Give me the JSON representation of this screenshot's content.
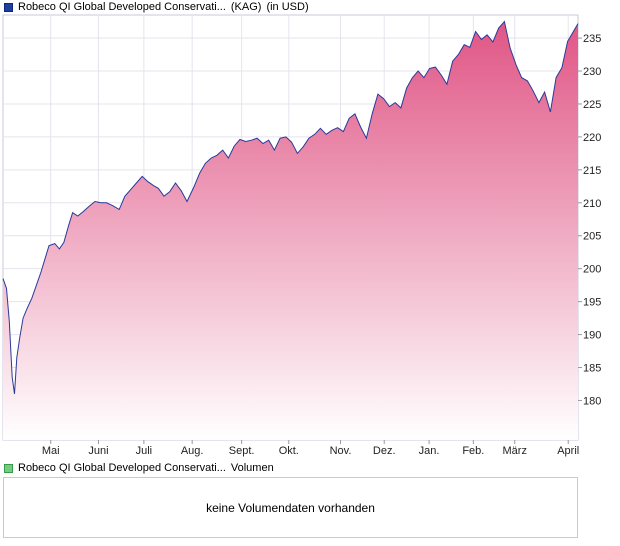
{
  "legend_price": {
    "name": "Robeco QI Global Developed Conservati...",
    "type": "(KAG)",
    "currency": "(in USD)",
    "color": "#1f3f9f"
  },
  "legend_volume": {
    "name": "Robeco QI Global Developed Conservati...",
    "label": "Volumen",
    "color": "#6fcf7f"
  },
  "volume_message": "keine Volumendaten vorhanden",
  "chart_data": {
    "type": "area",
    "title": "",
    "xlabel": "",
    "ylabel": "",
    "ylim": [
      174,
      238.5
    ],
    "grid": true,
    "y_axis_side": "right",
    "fill_gradient": [
      "#e05585",
      "#ffffff"
    ],
    "line_color": "#2a3a9a",
    "x_range": [
      0,
      1
    ],
    "x_ticks": [
      {
        "label": "Mai",
        "x": 0.083
      },
      {
        "label": "Juni",
        "x": 0.166
      },
      {
        "label": "Juli",
        "x": 0.245
      },
      {
        "label": "Aug.",
        "x": 0.329
      },
      {
        "label": "Sept.",
        "x": 0.415
      },
      {
        "label": "Okt.",
        "x": 0.497
      },
      {
        "label": "Nov.",
        "x": 0.587
      },
      {
        "label": "Dez.",
        "x": 0.663
      },
      {
        "label": "Jan.",
        "x": 0.741
      },
      {
        "label": "Feb.",
        "x": 0.818
      },
      {
        "label": "März",
        "x": 0.89
      },
      {
        "label": "April",
        "x": 0.983
      }
    ],
    "y_ticks": [
      180,
      185,
      190,
      195,
      200,
      205,
      210,
      215,
      220,
      225,
      230,
      235
    ],
    "series": [
      {
        "name": "Robeco QI Global Developed Conservati...",
        "points": [
          [
            0.0,
            198.5
          ],
          [
            0.006,
            197.0
          ],
          [
            0.011,
            192.0
          ],
          [
            0.016,
            183.5
          ],
          [
            0.02,
            181.0
          ],
          [
            0.024,
            186.5
          ],
          [
            0.029,
            189.5
          ],
          [
            0.035,
            192.5
          ],
          [
            0.042,
            194.0
          ],
          [
            0.05,
            195.5
          ],
          [
            0.058,
            197.5
          ],
          [
            0.066,
            199.5
          ],
          [
            0.073,
            201.5
          ],
          [
            0.08,
            203.5
          ],
          [
            0.09,
            203.8
          ],
          [
            0.098,
            203.0
          ],
          [
            0.106,
            204.0
          ],
          [
            0.114,
            206.5
          ],
          [
            0.121,
            208.5
          ],
          [
            0.13,
            208.0
          ],
          [
            0.14,
            208.7
          ],
          [
            0.15,
            209.5
          ],
          [
            0.16,
            210.2
          ],
          [
            0.17,
            210.0
          ],
          [
            0.18,
            210.0
          ],
          [
            0.19,
            209.6
          ],
          [
            0.202,
            209.0
          ],
          [
            0.212,
            211.0
          ],
          [
            0.222,
            212.0
          ],
          [
            0.232,
            213.0
          ],
          [
            0.242,
            214.0
          ],
          [
            0.252,
            213.2
          ],
          [
            0.262,
            212.6
          ],
          [
            0.27,
            212.2
          ],
          [
            0.28,
            211.0
          ],
          [
            0.29,
            211.7
          ],
          [
            0.3,
            213.0
          ],
          [
            0.31,
            211.8
          ],
          [
            0.32,
            210.2
          ],
          [
            0.332,
            212.4
          ],
          [
            0.342,
            214.5
          ],
          [
            0.352,
            216.0
          ],
          [
            0.362,
            216.8
          ],
          [
            0.372,
            217.2
          ],
          [
            0.382,
            218.0
          ],
          [
            0.392,
            216.8
          ],
          [
            0.402,
            218.6
          ],
          [
            0.412,
            219.6
          ],
          [
            0.422,
            219.3
          ],
          [
            0.432,
            219.5
          ],
          [
            0.442,
            219.8
          ],
          [
            0.452,
            219.0
          ],
          [
            0.462,
            219.5
          ],
          [
            0.472,
            218.0
          ],
          [
            0.482,
            219.8
          ],
          [
            0.492,
            220.0
          ],
          [
            0.502,
            219.2
          ],
          [
            0.512,
            217.5
          ],
          [
            0.522,
            218.5
          ],
          [
            0.532,
            219.8
          ],
          [
            0.542,
            220.4
          ],
          [
            0.552,
            221.3
          ],
          [
            0.562,
            220.4
          ],
          [
            0.572,
            221.0
          ],
          [
            0.582,
            221.4
          ],
          [
            0.592,
            220.8
          ],
          [
            0.602,
            222.8
          ],
          [
            0.612,
            223.5
          ],
          [
            0.622,
            221.5
          ],
          [
            0.632,
            219.8
          ],
          [
            0.642,
            223.5
          ],
          [
            0.652,
            226.5
          ],
          [
            0.662,
            225.8
          ],
          [
            0.672,
            224.6
          ],
          [
            0.682,
            225.2
          ],
          [
            0.692,
            224.4
          ],
          [
            0.702,
            227.4
          ],
          [
            0.712,
            229.0
          ],
          [
            0.722,
            230.0
          ],
          [
            0.732,
            229.0
          ],
          [
            0.742,
            230.4
          ],
          [
            0.752,
            230.6
          ],
          [
            0.762,
            229.4
          ],
          [
            0.772,
            228.0
          ],
          [
            0.782,
            231.5
          ],
          [
            0.792,
            232.5
          ],
          [
            0.802,
            234.0
          ],
          [
            0.812,
            233.6
          ],
          [
            0.822,
            236.0
          ],
          [
            0.832,
            234.8
          ],
          [
            0.842,
            235.5
          ],
          [
            0.852,
            234.4
          ],
          [
            0.862,
            236.5
          ],
          [
            0.872,
            237.5
          ],
          [
            0.882,
            233.5
          ],
          [
            0.892,
            231.0
          ],
          [
            0.902,
            229.0
          ],
          [
            0.912,
            228.5
          ],
          [
            0.922,
            227.0
          ],
          [
            0.932,
            225.2
          ],
          [
            0.942,
            226.8
          ],
          [
            0.952,
            223.8
          ],
          [
            0.962,
            229.0
          ],
          [
            0.972,
            230.5
          ],
          [
            0.982,
            234.5
          ],
          [
            0.992,
            236.0
          ],
          [
            1.0,
            237.2
          ]
        ]
      }
    ]
  }
}
